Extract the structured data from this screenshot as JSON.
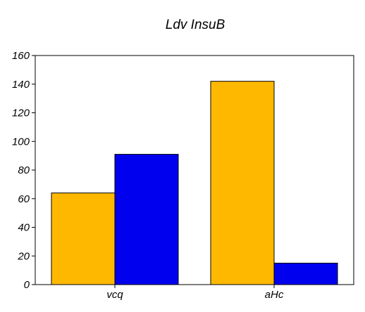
{
  "chart_data": {
    "type": "bar",
    "title": "Ldv InsuB",
    "xlabel": "",
    "ylabel": "",
    "categories": [
      "vcq",
      "aHc"
    ],
    "series": [
      {
        "values": [
          64,
          142
        ],
        "color": "#FFB800"
      },
      {
        "values": [
          91,
          15
        ],
        "color": "#0000EE"
      }
    ],
    "ylim": [
      0,
      160
    ],
    "yticks": [
      0,
      20,
      40,
      60,
      80,
      100,
      120,
      140,
      160
    ],
    "grid": false,
    "legend": "none"
  }
}
